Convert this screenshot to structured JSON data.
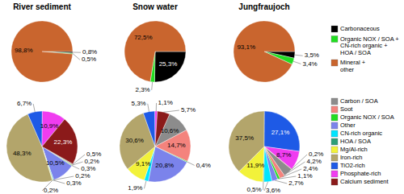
{
  "chart_data": [
    {
      "type": "pie",
      "title": "River sediment",
      "categories": [
        "Carbonaceous",
        "Organic NOX / SOA + CN-rich organic + HOA / SOA",
        "Mineral + other"
      ],
      "values": [
        0.8,
        0.5,
        98.8
      ],
      "value_labels": [
        "0,8%",
        "0,5%",
        "98,8%"
      ],
      "colors": [
        "#000000",
        "#22dd22",
        "#c9652e"
      ],
      "data_labels": true
    },
    {
      "type": "pie",
      "title": "Snow water",
      "categories": [
        "Carbonaceous",
        "Organic NOX / SOA + CN-rich organic + HOA / SOA",
        "Mineral + other"
      ],
      "values": [
        25.3,
        2.3,
        72.5
      ],
      "value_labels": [
        "25,3%",
        "2,3%",
        "72,5%"
      ],
      "colors": [
        "#000000",
        "#22dd22",
        "#c9652e"
      ],
      "data_labels": true
    },
    {
      "type": "pie",
      "title": "Jungfraujoch",
      "categories": [
        "Carbonaceous",
        "Organic NOX / SOA + CN-rich organic + HOA / SOA",
        "Mineral + other"
      ],
      "values": [
        3.5,
        3.4,
        93.1
      ],
      "value_labels": [
        "3,5%",
        "3,4%",
        "93,1%"
      ],
      "colors": [
        "#000000",
        "#22dd22",
        "#c9652e"
      ],
      "data_labels": true,
      "legend": "right"
    },
    {
      "type": "pie",
      "categories": [
        "Carbon / SOA",
        "Soot",
        "Organic NOX / SOA",
        "Other",
        "CN-rich organic",
        "HOA / SOA",
        "Mg/Al-rich",
        "Iron-rich",
        "TiO2-rich",
        "Phosphate-rich",
        "Calcium sediment"
      ],
      "values": [
        0.5,
        0.2,
        0.3,
        10.5,
        0.2,
        0.3,
        0.2,
        48.3,
        6.7,
        10.9,
        22.3
      ],
      "value_labels": [
        "0,5%",
        "0,2%",
        "0,3%",
        "10,5%",
        "0,2%",
        "0,3%",
        "0,2%",
        "48,3%",
        "6,7%",
        "10,9%",
        "22,3%"
      ],
      "colors": [
        "#8c8c8c",
        "#f4837d",
        "#22dd22",
        "#7b83eb",
        "#00e5ff",
        "#2e9e78",
        "#f2f23a",
        "#b3a56b",
        "#1e5ae6",
        "#f03cf0",
        "#8b1a1a"
      ],
      "data_labels": true
    },
    {
      "type": "pie",
      "categories": [
        "Carbon / SOA",
        "Soot",
        "Organic NOX / SOA",
        "Other",
        "CN-rich organic",
        "Mg/Al-rich",
        "Iron-rich",
        "TiO2-rich",
        "Phosphate-rich",
        "Calcium sediment"
      ],
      "values": [
        10.6,
        14.7,
        0.4,
        20.8,
        1.9,
        9.1,
        30.6,
        5.3,
        1.1,
        5.7
      ],
      "value_labels": [
        "10,6%",
        "14,7%",
        "0,4%",
        "20,8%",
        "1,9%",
        "9,1%",
        "30,6%",
        "5,3%",
        "1,1%",
        "5,7%"
      ],
      "colors": [
        "#8c8c8c",
        "#f4837d",
        "#22dd22",
        "#7b83eb",
        "#00e5ff",
        "#f2f23a",
        "#b3a56b",
        "#1e5ae6",
        "#f03cf0",
        "#8b1a1a"
      ],
      "data_labels": true
    },
    {
      "type": "pie",
      "categories": [
        "Carbon / SOA",
        "Soot",
        "Organic NOX / SOA",
        "Other",
        "CN-rich organic",
        "HOA / SOA",
        "Mg/Al-rich",
        "Iron-rich",
        "TiO2-rich",
        "Phosphate-rich",
        "Calcium sediment"
      ],
      "values": [
        4.2,
        2.4,
        1.1,
        2.7,
        3.6,
        0.5,
        11.9,
        37.5,
        27.1,
        8.7,
        0.2
      ],
      "value_labels": [
        "4,2%",
        "2,4%",
        "1,1%",
        "2,7%",
        "3,6%",
        "0,5%",
        "11,9%",
        "37,5%",
        "27,1%",
        "8,7%",
        "0,2%"
      ],
      "colors": [
        "#8c8c8c",
        "#f4837d",
        "#22dd22",
        "#7b83eb",
        "#00e5ff",
        "#2e9e78",
        "#f2f23a",
        "#b3a56b",
        "#1e5ae6",
        "#f03cf0",
        "#8b1a1a"
      ],
      "data_labels": true,
      "legend": "right"
    }
  ]
}
